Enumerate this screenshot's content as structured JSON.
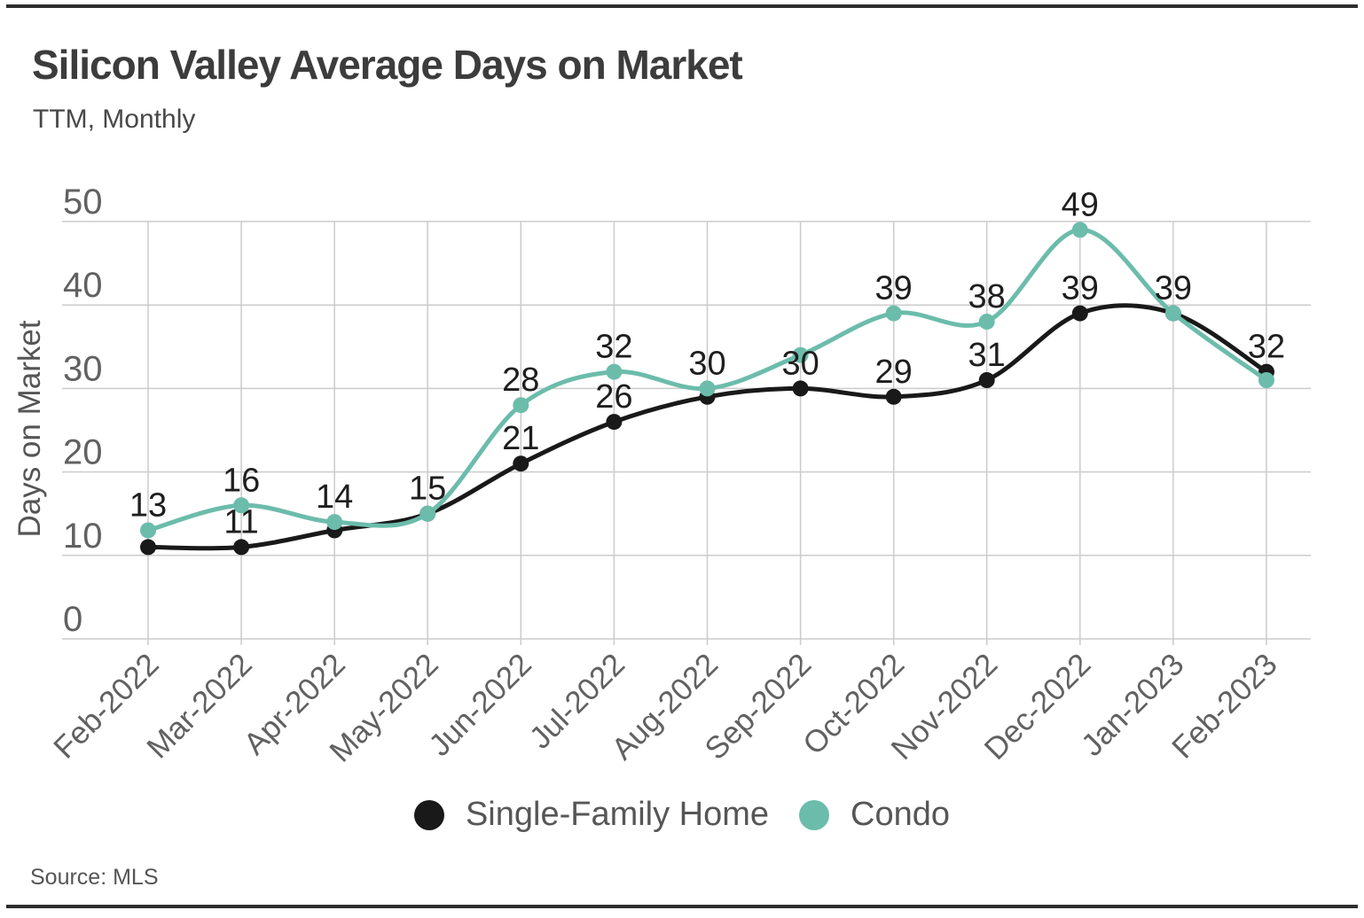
{
  "header": {
    "title": "Silicon Valley Average Days on Market",
    "subtitle": "TTM, Monthly"
  },
  "footer": {
    "source": "Source: MLS"
  },
  "legend": [
    {
      "label": "Single-Family Home",
      "color": "#191919"
    },
    {
      "label": "Condo",
      "color": "#6cbcab"
    }
  ],
  "colors": {
    "grid": "#cbcbcb",
    "axis_text": "#616161",
    "data_label_text": "#1e1e1e",
    "single_family": "#191919",
    "condo": "#6cbcab"
  },
  "chart_data": {
    "type": "line",
    "title": "Silicon Valley Average Days on Market",
    "subtitle": "TTM, Monthly",
    "xlabel": "",
    "ylabel": "Days on Market",
    "ylim": [
      0,
      50
    ],
    "ytick_step": 10,
    "yticks": [
      0,
      10,
      20,
      30,
      40,
      50
    ],
    "grid": true,
    "x_tick_rotation": 45,
    "legend_position": "bottom",
    "smooth_lines": true,
    "categories": [
      "Feb-2022",
      "Mar-2022",
      "Apr-2022",
      "May-2022",
      "Jun-2022",
      "Jul-2022",
      "Aug-2022",
      "Sep-2022",
      "Oct-2022",
      "Nov-2022",
      "Dec-2022",
      "Jan-2023",
      "Feb-2023"
    ],
    "series": [
      {
        "name": "Single-Family Home",
        "color": "#191919",
        "values": [
          11,
          11,
          13,
          15,
          21,
          26,
          29,
          30,
          29,
          31,
          39,
          39,
          32
        ],
        "data_labels": [
          null,
          "11",
          null,
          null,
          "21",
          "26",
          null,
          "30",
          "29",
          "31",
          "39",
          null,
          "32"
        ]
      },
      {
        "name": "Condo",
        "color": "#6cbcab",
        "values": [
          13,
          16,
          14,
          15,
          28,
          32,
          30,
          34,
          39,
          38,
          49,
          39,
          31
        ],
        "data_labels": [
          "13",
          "16",
          "14",
          "15",
          "28",
          "32",
          "30",
          null,
          "39",
          "38",
          "49",
          "39",
          null
        ]
      }
    ]
  }
}
